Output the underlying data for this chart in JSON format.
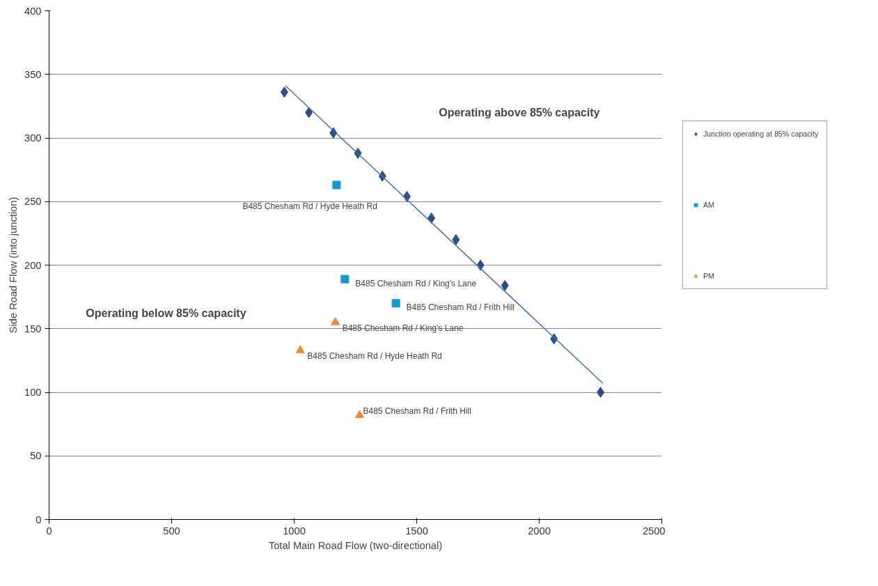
{
  "chart_data": {
    "type": "scatter",
    "xlabel": "Total Main Road Flow (two-directional)",
    "ylabel": "Side Road Flow (into junction)",
    "xlim": [
      0,
      2500
    ],
    "xticks": [
      0,
      500,
      1000,
      1500,
      2000,
      2500
    ],
    "ylim": [
      0,
      400
    ],
    "yticks": [
      0,
      50,
      100,
      150,
      200,
      250,
      300,
      350,
      400
    ],
    "grid": "y",
    "legend": "right",
    "series": [
      {
        "name": "Junction operating at 85% capacity",
        "color": "#2a4f8a",
        "marker": "diamond",
        "x": [
          960,
          1060,
          1160,
          1260,
          1360,
          1460,
          1560,
          1660,
          1760,
          1860,
          2060,
          2250
        ],
        "values": [
          336,
          320,
          304,
          288,
          270,
          254,
          237,
          220,
          200,
          184,
          142,
          100
        ]
      },
      {
        "name": "AM",
        "color": "#0f9bd0",
        "marker": "square",
        "x": [
          1173,
          1207,
          1415
        ],
        "values": [
          263,
          189,
          170
        ]
      },
      {
        "name": "PM",
        "color": "#f28a30",
        "marker": "triangle",
        "x": [
          1168,
          1025,
          1267
        ],
        "values": [
          155,
          133,
          82
        ]
      },
      {
        "type": "line",
        "color": "#4a6fa5",
        "marker": "none",
        "x": [
          965,
          2260
        ],
        "values": [
          341,
          107
        ]
      }
    ],
    "annotations": [
      {
        "text": "B485 Chesham Rd / Hyde Heath Rd",
        "x": 1173,
        "y": 263
      },
      {
        "text": "B485 Chesham Rd  / King's Lane",
        "x": 1207,
        "y": 189
      },
      {
        "text": "B485 Chesham Rd / Frith Hill",
        "x": 1415,
        "y": 170
      },
      {
        "text": "B485 Chesham Rd  / King's Lane",
        "x": 1168,
        "y": 155
      },
      {
        "text": "B485 Chesham  Rd / Hyde Heath Rd",
        "x": 1025,
        "y": 133
      },
      {
        "text": "B485 Chesham Rd / Frith Hill",
        "x": 1267,
        "y": 82
      },
      "Operating above 85% capacity",
      "Operating below 85% capacity"
    ]
  }
}
